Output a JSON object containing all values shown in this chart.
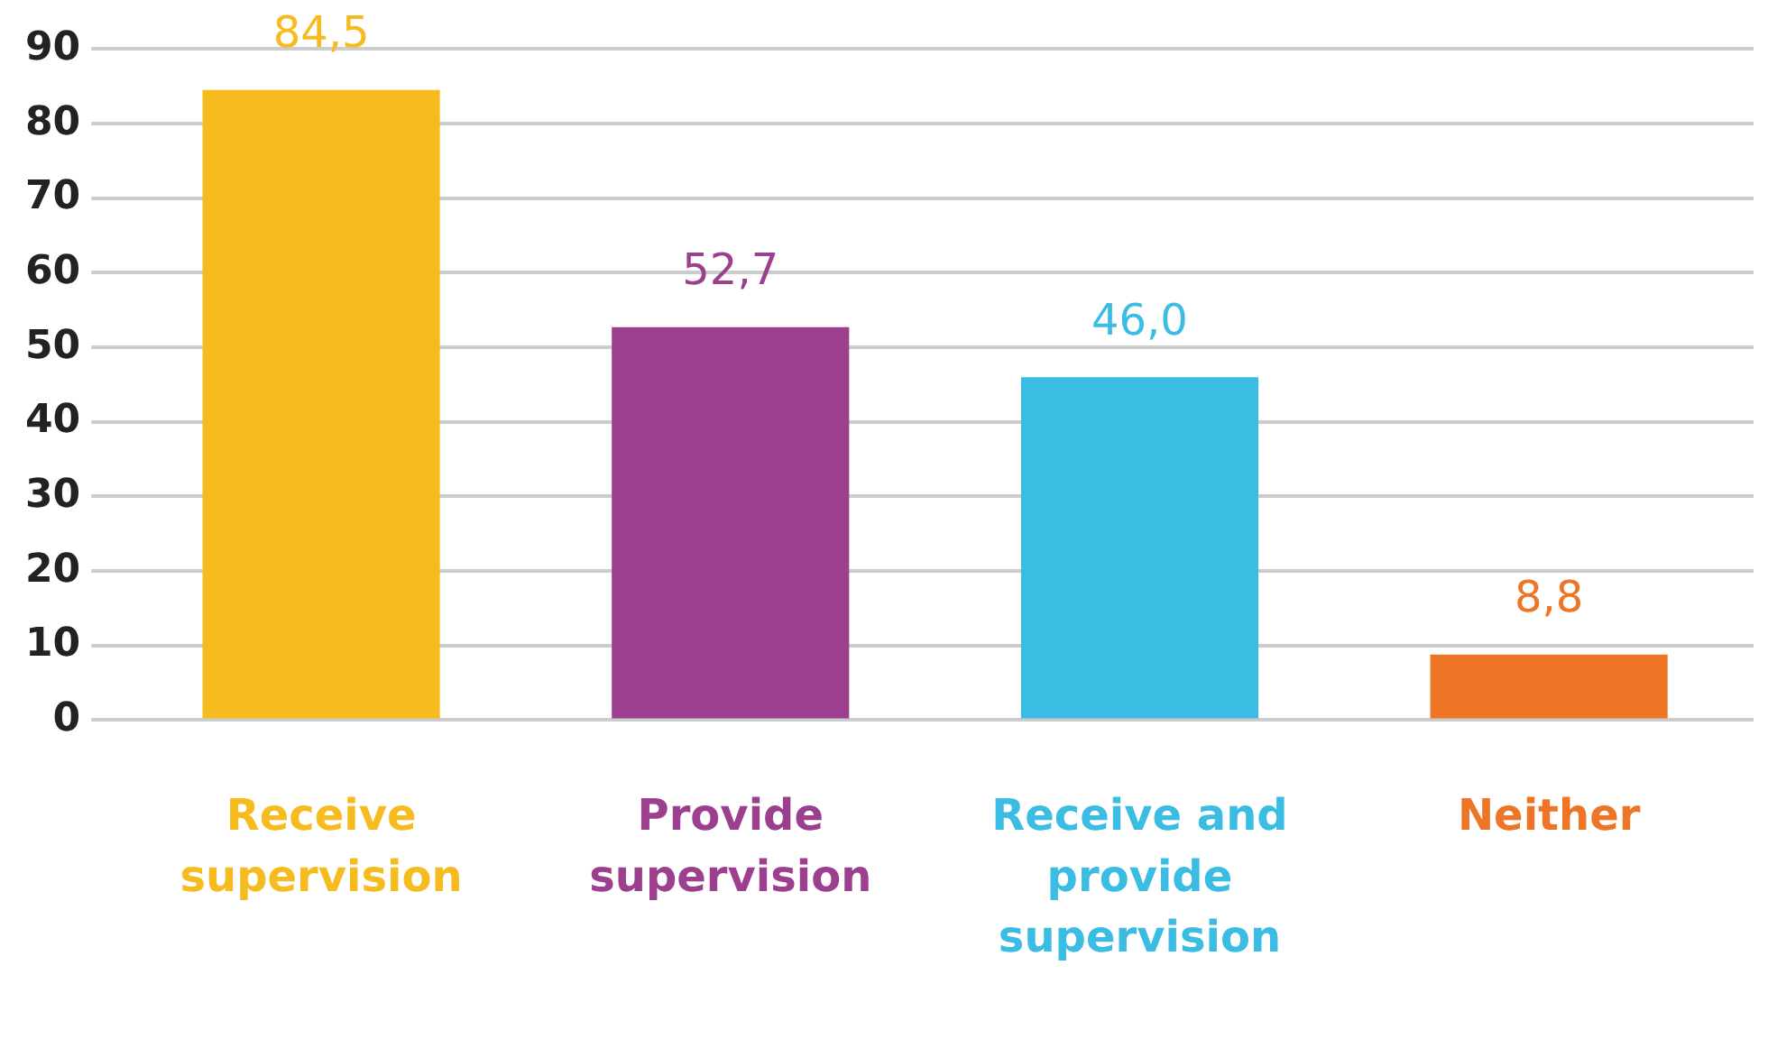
{
  "chart_data": {
    "type": "bar",
    "categories": [
      "Receive supervision",
      "Provide supervision",
      "Receive and provide supervision",
      "Neither"
    ],
    "values": [
      84.5,
      52.7,
      46.0,
      8.8
    ],
    "colors": [
      "#f6bb1e",
      "#9b3f8e",
      "#3bbde3",
      "#ee7426"
    ],
    "value_labels": [
      "84,5",
      "52,7",
      "46,0",
      "8,8"
    ],
    "ylim": [
      0,
      90
    ],
    "yticks": [
      0,
      10,
      20,
      30,
      40,
      50,
      60,
      70,
      80,
      90
    ],
    "grid": "y",
    "legend": false
  }
}
